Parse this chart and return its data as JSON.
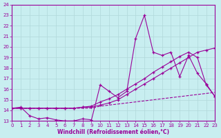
{
  "xlabel": "Windchill (Refroidissement éolien,°C)",
  "background_color": "#c8eef0",
  "line_color": "#990099",
  "xlim": [
    0,
    23
  ],
  "ylim": [
    13,
    24
  ],
  "yticks": [
    13,
    14,
    15,
    16,
    17,
    18,
    19,
    20,
    21,
    22,
    23,
    24
  ],
  "xticks": [
    0,
    1,
    2,
    3,
    4,
    5,
    6,
    7,
    8,
    9,
    10,
    11,
    12,
    13,
    14,
    15,
    16,
    17,
    18,
    19,
    20,
    21,
    22,
    23
  ],
  "line1_x": [
    0,
    1,
    2,
    3,
    4,
    5,
    6,
    7,
    8,
    9,
    10,
    11,
    12,
    13,
    14,
    15,
    16,
    17,
    18,
    19,
    20,
    21,
    22,
    23
  ],
  "line1_y": [
    14.2,
    14.3,
    13.5,
    13.2,
    13.3,
    13.1,
    13.0,
    13.0,
    13.2,
    13.1,
    16.4,
    15.8,
    15.2,
    15.8,
    20.8,
    23.0,
    19.5,
    19.2,
    19.5,
    17.2,
    19.2,
    17.5,
    16.5,
    15.3
  ],
  "line2_x": [
    0,
    1,
    2,
    3,
    4,
    5,
    6,
    7,
    8,
    9,
    10,
    11,
    12,
    13,
    14,
    15,
    16,
    17,
    18,
    19,
    20,
    21,
    22,
    23
  ],
  "line2_y": [
    14.2,
    14.2,
    14.2,
    14.2,
    14.2,
    14.2,
    14.2,
    14.2,
    14.3,
    14.4,
    14.8,
    15.1,
    15.5,
    16.0,
    16.5,
    17.0,
    17.6,
    18.1,
    18.6,
    19.1,
    19.5,
    19.0,
    16.4,
    15.3
  ],
  "line3_x": [
    0,
    1,
    2,
    3,
    4,
    5,
    6,
    7,
    8,
    9,
    10,
    11,
    12,
    13,
    14,
    15,
    16,
    17,
    18,
    19,
    20,
    21,
    22,
    23
  ],
  "line3_y": [
    14.2,
    14.2,
    14.2,
    14.2,
    14.2,
    14.2,
    14.2,
    14.2,
    14.3,
    14.3,
    14.5,
    14.7,
    15.0,
    15.5,
    16.0,
    16.5,
    17.0,
    17.5,
    18.0,
    18.5,
    19.0,
    19.5,
    19.7,
    19.9
  ],
  "line4_x": [
    0,
    1,
    2,
    3,
    4,
    5,
    6,
    7,
    8,
    9,
    10,
    11,
    12,
    13,
    14,
    15,
    16,
    17,
    18,
    19,
    20,
    21,
    22,
    23
  ],
  "line4_y": [
    14.2,
    14.2,
    14.2,
    14.2,
    14.2,
    14.2,
    14.2,
    14.2,
    14.2,
    14.2,
    14.4,
    14.5,
    14.6,
    14.7,
    14.8,
    14.9,
    15.0,
    15.1,
    15.2,
    15.3,
    15.4,
    15.5,
    15.6,
    15.7
  ]
}
